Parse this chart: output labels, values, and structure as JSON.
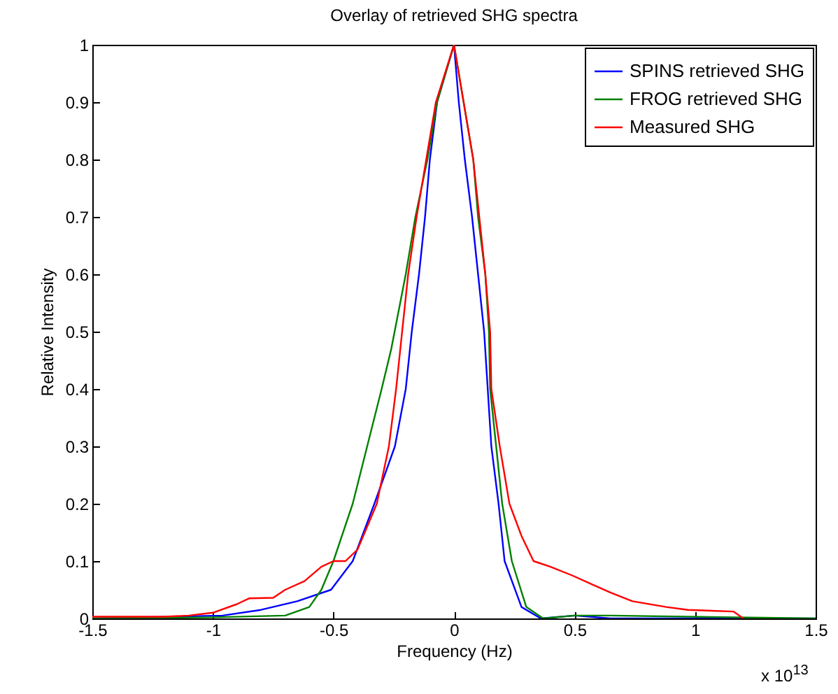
{
  "chart_data": {
    "type": "line",
    "title": "Overlay of retrieved SHG spectra",
    "xlabel": "Frequency (Hz)",
    "ylabel": "Relative Intensity",
    "annotations": [
      "x 10$^{13}$"
    ],
    "xlim": [
      -1.5,
      1.5
    ],
    "ylim": [
      0,
      1
    ],
    "xticks": [
      -1.5,
      -1,
      -0.5,
      0,
      0.5,
      1,
      1.5
    ],
    "yticks": [
      0,
      0.1,
      0.2,
      0.3,
      0.4,
      0.5,
      0.6,
      0.7,
      0.8,
      0.9,
      1
    ],
    "grid": false,
    "legend": "top right",
    "line_style": "solid",
    "series": [
      {
        "name": "SPINS retrieved SHG",
        "color": "#0000ff",
        "x": [
          -1.5,
          -0.96,
          -0.8,
          -0.65,
          -0.51,
          -0.42,
          -0.33,
          -0.245,
          -0.2,
          -0.175,
          -0.145,
          -0.12,
          -0.1,
          -0.07,
          0,
          0.02,
          0.045,
          0.075,
          0.1,
          0.125,
          0.155,
          0.185,
          0.21,
          0.28,
          0.36,
          0.5,
          0.65,
          1.5
        ],
        "values": [
          0,
          0.005,
          0.015,
          0.03,
          0.05,
          0.1,
          0.2,
          0.3,
          0.4,
          0.5,
          0.6,
          0.7,
          0.8,
          0.9,
          1,
          0.9,
          0.8,
          0.7,
          0.6,
          0.5,
          0.3,
          0.2,
          0.1,
          0.02,
          0,
          0.005,
          0,
          0
        ]
      },
      {
        "name": "FROG retrieved SHG",
        "color": "#008000",
        "x": [
          -1.5,
          -1,
          -0.7,
          -0.6,
          -0.55,
          -0.5,
          -0.42,
          -0.36,
          -0.3,
          -0.26,
          -0.2,
          -0.16,
          -0.11,
          -0.07,
          0,
          0.04,
          0.08,
          0.1,
          0.13,
          0.145,
          0.15,
          0.175,
          0.2,
          0.24,
          0.3,
          0.37,
          0.5,
          0.65,
          1.5
        ],
        "values": [
          0,
          0.002,
          0.005,
          0.02,
          0.05,
          0.1,
          0.2,
          0.3,
          0.4,
          0.47,
          0.6,
          0.7,
          0.8,
          0.9,
          1,
          0.9,
          0.8,
          0.7,
          0.6,
          0.5,
          0.4,
          0.3,
          0.2,
          0.1,
          0.02,
          0,
          0.005,
          0.005,
          0
        ]
      },
      {
        "name": "Measured SHG",
        "color": "#ff0000",
        "x": [
          -1.5,
          -1.2,
          -1.1,
          -1,
          -0.9,
          -0.85,
          -0.75,
          -0.7,
          -0.62,
          -0.55,
          -0.5,
          -0.45,
          -0.4,
          -0.32,
          -0.27,
          -0.24,
          -0.215,
          -0.19,
          -0.155,
          -0.115,
          -0.075,
          0,
          0.04,
          0.08,
          0.105,
          0.13,
          0.15,
          0.155,
          0.19,
          0.23,
          0.28,
          0.33,
          0.4,
          0.49,
          0.57,
          0.65,
          0.74,
          0.88,
          0.97,
          1.16,
          1.2
        ],
        "values": [
          0.003,
          0.003,
          0.005,
          0.01,
          0.025,
          0.035,
          0.036,
          0.05,
          0.065,
          0.09,
          0.1,
          0.1,
          0.12,
          0.2,
          0.3,
          0.4,
          0.5,
          0.6,
          0.7,
          0.8,
          0.9,
          1,
          0.9,
          0.8,
          0.7,
          0.6,
          0.5,
          0.4,
          0.3,
          0.2,
          0.144,
          0.1,
          0.09,
          0.075,
          0.06,
          0.045,
          0.03,
          0.02,
          0.015,
          0.012,
          0
        ]
      }
    ]
  }
}
